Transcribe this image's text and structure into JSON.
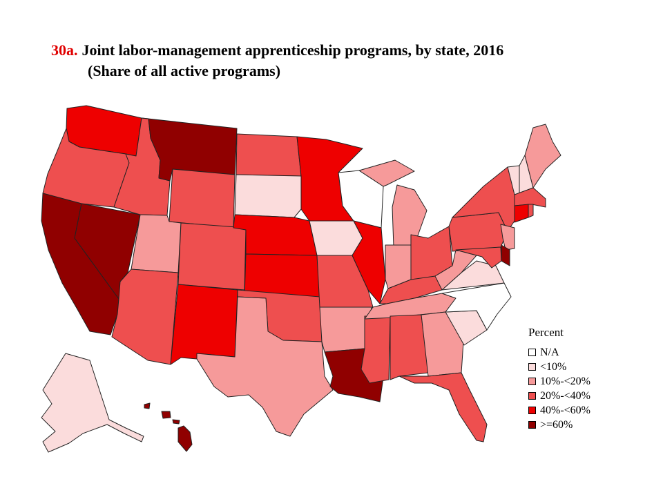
{
  "title": {
    "number": "30a.",
    "text": "Joint labor-management apprenticeship programs, by state, 2016",
    "subtitle": "(Share of all active programs)"
  },
  "legend": {
    "title": "Percent",
    "items": [
      {
        "label": "N/A",
        "color": "#ffffff"
      },
      {
        "label": "<10%",
        "color": "#fbdcdc"
      },
      {
        "label": "10%-<20%",
        "color": "#f69a9a"
      },
      {
        "label": "20%-<40%",
        "color": "#ee4f4f"
      },
      {
        "label": "40%-<60%",
        "color": "#ee0000"
      },
      {
        "label": ">=60%",
        "color": "#900000"
      }
    ]
  },
  "states": [
    {
      "code": "WA",
      "category": "40%-<60%"
    },
    {
      "code": "OR",
      "category": "20%-<40%"
    },
    {
      "code": "CA",
      "category": ">=60%"
    },
    {
      "code": "NV",
      "category": ">=60%"
    },
    {
      "code": "ID",
      "category": "20%-<40%"
    },
    {
      "code": "MT",
      "category": ">=60%"
    },
    {
      "code": "WY",
      "category": "20%-<40%"
    },
    {
      "code": "UT",
      "category": "10%-<20%"
    },
    {
      "code": "AZ",
      "category": "20%-<40%"
    },
    {
      "code": "CO",
      "category": "20%-<40%"
    },
    {
      "code": "NM",
      "category": "40%-<60%"
    },
    {
      "code": "ND",
      "category": "20%-<40%"
    },
    {
      "code": "SD",
      "category": "<10%"
    },
    {
      "code": "NE",
      "category": "40%-<60%"
    },
    {
      "code": "KS",
      "category": "40%-<60%"
    },
    {
      "code": "OK",
      "category": "20%-<40%"
    },
    {
      "code": "TX",
      "category": "10%-<20%"
    },
    {
      "code": "MN",
      "category": "40%-<60%"
    },
    {
      "code": "IA",
      "category": "<10%"
    },
    {
      "code": "MO",
      "category": "20%-<40%"
    },
    {
      "code": "AR",
      "category": "10%-<20%"
    },
    {
      "code": "LA",
      "category": ">=60%"
    },
    {
      "code": "WI",
      "category": "N/A"
    },
    {
      "code": "IL",
      "category": "40%-<60%"
    },
    {
      "code": "MS",
      "category": "20%-<40%"
    },
    {
      "code": "MI",
      "category": "10%-<20%"
    },
    {
      "code": "IN",
      "category": "10%-<20%"
    },
    {
      "code": "KY",
      "category": "20%-<40%"
    },
    {
      "code": "TN",
      "category": "10%-<20%"
    },
    {
      "code": "AL",
      "category": "20%-<40%"
    },
    {
      "code": "OH",
      "category": "20%-<40%"
    },
    {
      "code": "GA",
      "category": "10%-<20%"
    },
    {
      "code": "FL",
      "category": "20%-<40%"
    },
    {
      "code": "SC",
      "category": "<10%"
    },
    {
      "code": "NC",
      "category": "N/A"
    },
    {
      "code": "VA",
      "category": "<10%"
    },
    {
      "code": "WV",
      "category": "10%-<20%"
    },
    {
      "code": "PA",
      "category": "20%-<40%"
    },
    {
      "code": "NY",
      "category": "20%-<40%"
    },
    {
      "code": "VT",
      "category": "<10%"
    },
    {
      "code": "NH",
      "category": "<10%"
    },
    {
      "code": "ME",
      "category": "10%-<20%"
    },
    {
      "code": "MA",
      "category": "20%-<40%"
    },
    {
      "code": "RI",
      "category": "20%-<40%"
    },
    {
      "code": "CT",
      "category": "40%-<60%"
    },
    {
      "code": "NJ",
      "category": "10%-<20%"
    },
    {
      "code": "DE",
      "category": ">=60%"
    },
    {
      "code": "MD",
      "category": "20%-<40%"
    },
    {
      "code": "AK",
      "category": "<10%"
    },
    {
      "code": "HI",
      "category": ">=60%"
    }
  ]
}
